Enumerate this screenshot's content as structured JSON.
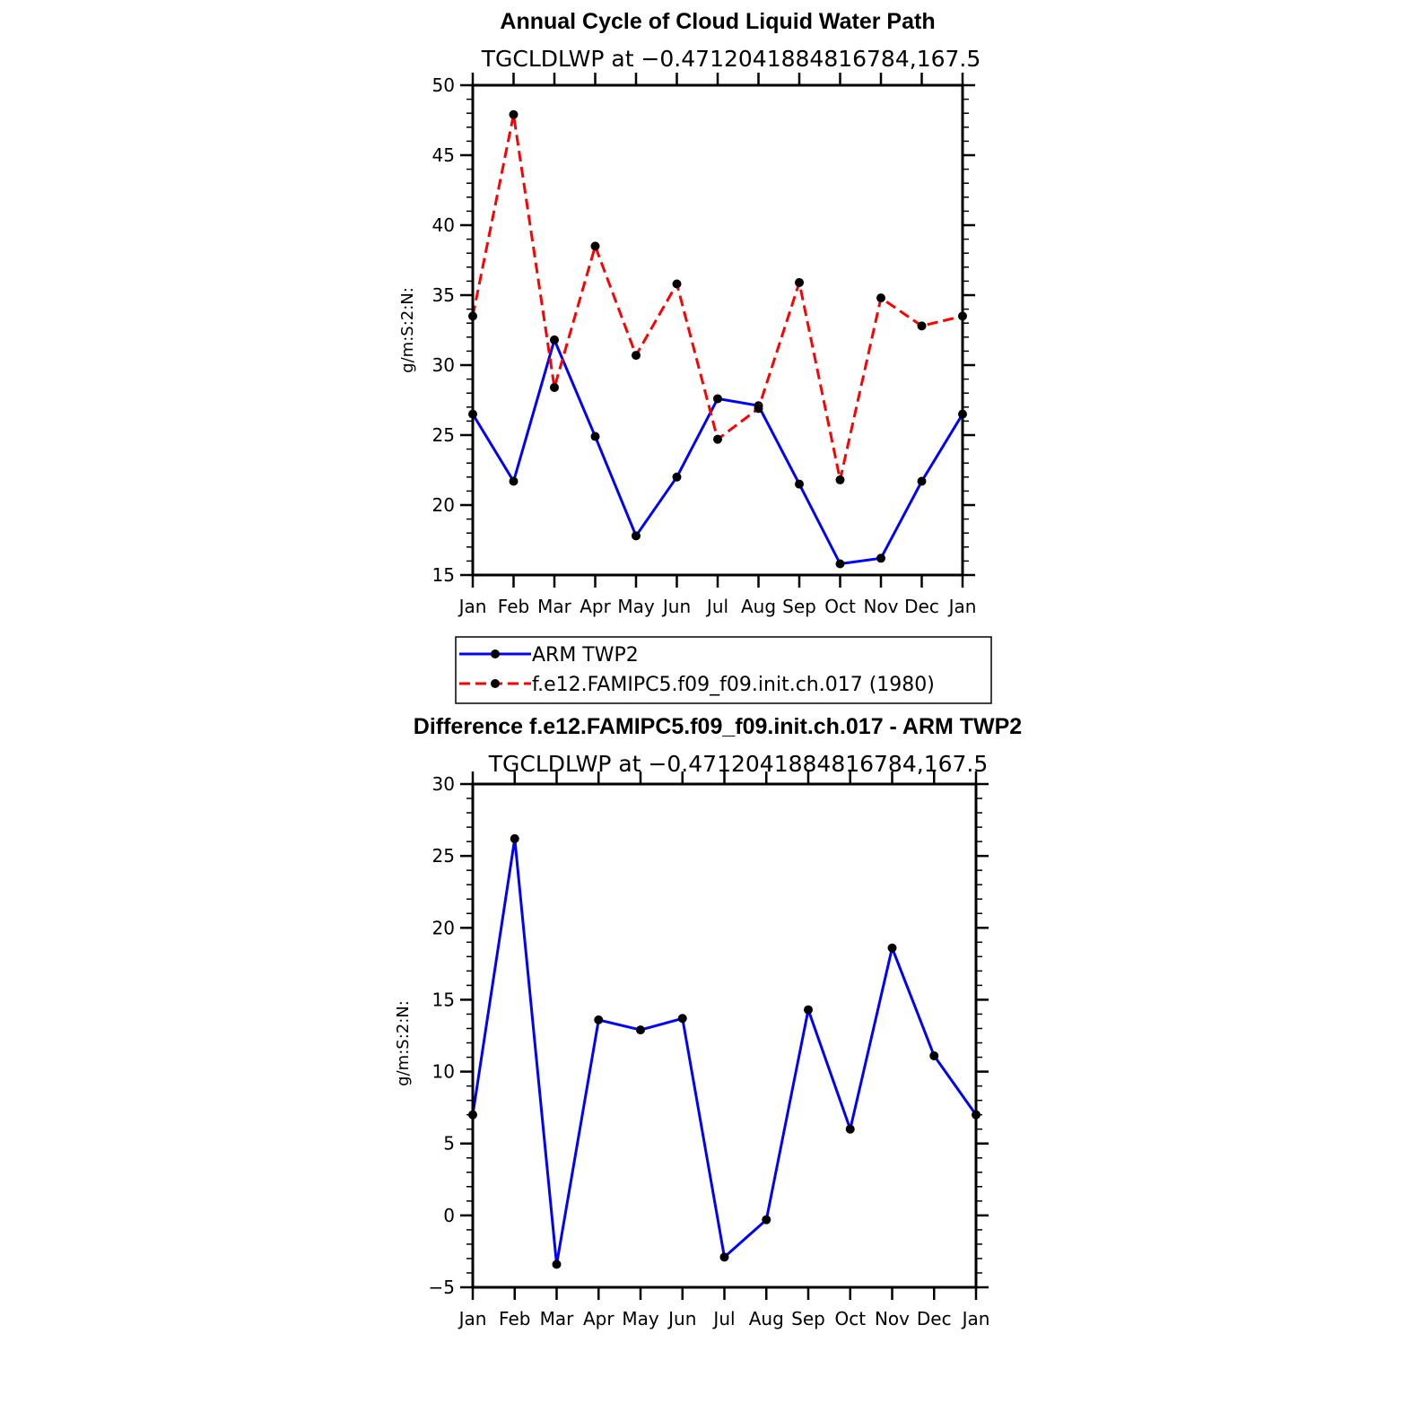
{
  "chart_data": [
    {
      "type": "line",
      "title": "Annual Cycle of Cloud Liquid Water Path",
      "subtitle": "TGCLDLWP at −0.4712041884816784,167.5",
      "ylabel": "g/m:S:2:N:",
      "xlabel": "",
      "categories": [
        "Jan",
        "Feb",
        "Mar",
        "Apr",
        "May",
        "Jun",
        "Jul",
        "Aug",
        "Sep",
        "Oct",
        "Nov",
        "Dec",
        "Jan"
      ],
      "ylim": [
        15,
        50
      ],
      "yticks": [
        "15",
        "20",
        "25",
        "30",
        "35",
        "40",
        "45",
        "50"
      ],
      "grid": false,
      "legend_position": "below",
      "series": [
        {
          "name": "ARM TWP2",
          "color": "#0000ff",
          "dash": "solid",
          "values": [
            26.5,
            21.7,
            31.8,
            24.9,
            17.8,
            22.0,
            27.6,
            27.1,
            21.5,
            15.8,
            16.2,
            21.7,
            26.5
          ]
        },
        {
          "name": "f.e12.FAMIPC5.f09_f09.init.ch.017 (1980)",
          "color": "#ff0000",
          "dash": "dashed",
          "values": [
            33.5,
            47.9,
            28.4,
            38.5,
            30.7,
            35.8,
            24.7,
            26.9,
            35.9,
            21.8,
            34.8,
            32.8,
            33.5
          ]
        }
      ]
    },
    {
      "type": "line",
      "title": "Difference f.e12.FAMIPC5.f09_f09.init.ch.017 - ARM TWP2",
      "subtitle": "TGCLDLWP at −0.4712041884816784,167.5",
      "ylabel": "g/m:S:2:N:",
      "xlabel": "",
      "categories": [
        "Jan",
        "Feb",
        "Mar",
        "Apr",
        "May",
        "Jun",
        "Jul",
        "Aug",
        "Sep",
        "Oct",
        "Nov",
        "Dec",
        "Jan"
      ],
      "ylim": [
        -5,
        30
      ],
      "yticks": [
        "−5",
        "0",
        "5",
        "10",
        "15",
        "20",
        "25",
        "30"
      ],
      "grid": false,
      "series": [
        {
          "color": "#0000ff",
          "dash": "solid",
          "values": [
            7.0,
            26.2,
            -3.4,
            13.6,
            12.9,
            13.7,
            -2.9,
            -0.3,
            14.3,
            6.0,
            18.6,
            11.1,
            7.0
          ]
        }
      ]
    }
  ]
}
